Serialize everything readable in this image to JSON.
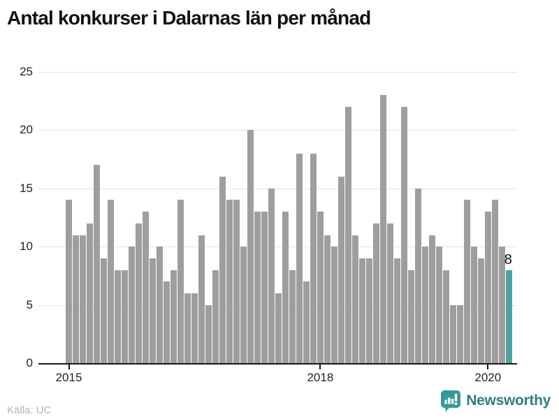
{
  "title": "Antal konkurser i Dalarnas län per månad",
  "source": "Källa: UC",
  "branding": {
    "logo_text": "Newsworthy",
    "logo_icon": "newsworthy-bars-speech-bubble"
  },
  "colors": {
    "bar": "#9e9e9e",
    "highlight": "#4aa49d",
    "axis": "#1a1a1a",
    "grid": "#e3e3e3",
    "title": "#121212",
    "tick_label": "#222222",
    "source_text": "#b3b3b3",
    "logo_teal": "#349a9a",
    "logo_text_color": "#337f80"
  },
  "chart_data": {
    "type": "bar",
    "title": "Antal konkurser i Dalarnas län per månad",
    "xlabel": "",
    "ylabel": "",
    "ylim": [
      0,
      25
    ],
    "grid": "horizontal",
    "legend": "none",
    "start_month": "2015-01",
    "end_month": "2020-04",
    "y_ticks": [
      0,
      5,
      10,
      15,
      20,
      25
    ],
    "x_ticks": [
      {
        "label": "2015",
        "month_index": 0
      },
      {
        "label": "2018",
        "month_index": 36
      },
      {
        "label": "2020",
        "month_index": 60
      }
    ],
    "values": [
      14,
      11,
      11,
      12,
      17,
      9,
      14,
      8,
      8,
      10,
      12,
      13,
      9,
      10,
      7,
      8,
      14,
      6,
      6,
      11,
      5,
      8,
      16,
      14,
      14,
      10,
      20,
      13,
      13,
      15,
      6,
      13,
      8,
      18,
      7,
      18,
      13,
      11,
      10,
      16,
      22,
      11,
      9,
      9,
      12,
      23,
      12,
      9,
      22,
      8,
      15,
      10,
      11,
      10,
      8,
      5,
      5,
      14,
      10,
      9,
      13,
      14,
      10,
      8
    ],
    "highlight_last_bar": true,
    "last_value_label": "8"
  }
}
